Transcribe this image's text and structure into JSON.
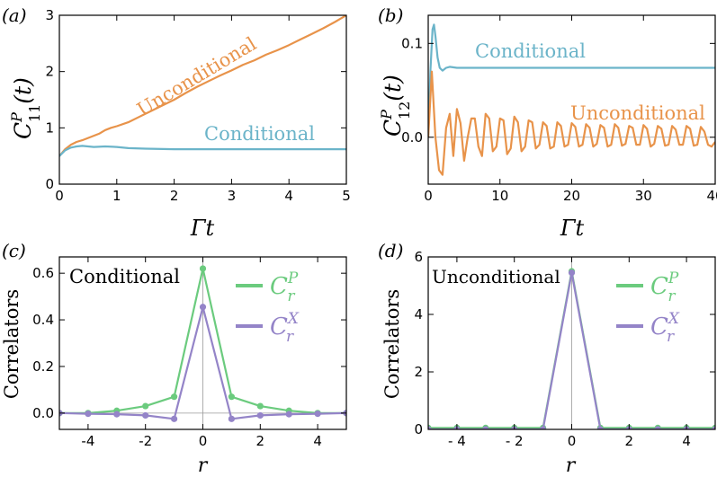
{
  "chart_data": [
    {
      "type": "line",
      "panel_label": "(a)",
      "ylabel_main": "C",
      "ylabel_sup": "P",
      "ylabel_sub": "11",
      "ylabel_tail": "(t)",
      "xlabel_main": "Γt",
      "xlim": [
        0,
        5
      ],
      "ylim": [
        0,
        3
      ],
      "xticks": [
        0,
        1,
        2,
        3,
        4,
        5
      ],
      "yticks": [
        0,
        1,
        2,
        3
      ],
      "series": [
        {
          "name": "Unconditional",
          "color": "#E8934A",
          "x": [
            0,
            0.1,
            0.2,
            0.3,
            0.4,
            0.5,
            0.6,
            0.7,
            0.8,
            0.9,
            1.0,
            1.2,
            1.4,
            1.6,
            1.8,
            2.0,
            2.2,
            2.4,
            2.6,
            2.8,
            3.0,
            3.2,
            3.4,
            3.6,
            3.8,
            4.0,
            4.2,
            4.4,
            4.6,
            4.8,
            5.0
          ],
          "y": [
            0.5,
            0.62,
            0.7,
            0.75,
            0.78,
            0.82,
            0.86,
            0.9,
            0.96,
            1.0,
            1.03,
            1.1,
            1.2,
            1.3,
            1.4,
            1.5,
            1.62,
            1.73,
            1.83,
            1.93,
            2.02,
            2.12,
            2.2,
            2.3,
            2.38,
            2.47,
            2.57,
            2.67,
            2.77,
            2.88,
            3.0
          ]
        },
        {
          "name": "Conditional",
          "color": "#6BB4C9",
          "x": [
            0,
            0.1,
            0.2,
            0.3,
            0.4,
            0.5,
            0.6,
            0.8,
            1.0,
            1.2,
            1.5,
            2.0,
            3.0,
            4.0,
            5.0
          ],
          "y": [
            0.5,
            0.6,
            0.65,
            0.67,
            0.68,
            0.67,
            0.66,
            0.67,
            0.66,
            0.64,
            0.63,
            0.62,
            0.62,
            0.62,
            0.62
          ]
        }
      ]
    },
    {
      "type": "line",
      "panel_label": "(b)",
      "ylabel_main": "C",
      "ylabel_sup": "P",
      "ylabel_sub": "12",
      "ylabel_tail": "(t)",
      "xlabel_main": "Γt",
      "xlim": [
        0,
        40
      ],
      "ylim": [
        -0.05,
        0.13
      ],
      "xticks": [
        0,
        10,
        20,
        30,
        40
      ],
      "yticks": [
        0.0,
        0.1
      ],
      "ytick_labels": [
        "0.0",
        "0.1"
      ],
      "zero_line": true,
      "series": [
        {
          "name": "Conditional",
          "color": "#6BB4C9",
          "x": [
            0,
            0.3,
            0.6,
            0.8,
            1.0,
            1.3,
            1.6,
            2.0,
            2.5,
            3.0,
            4.0,
            6.0,
            10,
            20,
            30,
            40
          ],
          "y": [
            0.0,
            0.07,
            0.115,
            0.12,
            0.108,
            0.085,
            0.074,
            0.071,
            0.074,
            0.075,
            0.074,
            0.074,
            0.074,
            0.074,
            0.074,
            0.074
          ]
        },
        {
          "name": "Unconditional",
          "color": "#E8934A",
          "x": [
            0,
            0.5,
            1.0,
            1.5,
            2.0,
            2.5,
            3.0,
            3.5,
            4.0,
            4.5,
            5.0,
            5.5,
            6.0,
            6.5,
            7.0,
            7.5,
            8.0,
            8.5,
            9.0,
            9.5,
            10.0,
            10.5,
            11.0,
            11.5,
            12.0,
            12.5,
            13.0,
            13.5,
            14.0,
            14.5,
            15.0,
            15.5,
            16.0,
            16.5,
            17.0,
            17.5,
            18.0,
            18.5,
            19.0,
            19.5,
            20.0,
            20.5,
            21.0,
            21.5,
            22.0,
            22.5,
            23.0,
            23.5,
            24.0,
            24.5,
            25.0,
            25.5,
            26.0,
            26.5,
            27.0,
            27.5,
            28.0,
            28.5,
            29.0,
            29.5,
            30.0,
            30.5,
            31.0,
            31.5,
            32.0,
            32.5,
            33.0,
            33.5,
            34.0,
            34.5,
            35.0,
            35.5,
            36.0,
            36.5,
            37.0,
            37.5,
            38.0,
            38.5,
            39.0,
            39.5,
            40.0
          ],
          "y": [
            0.0,
            0.07,
            0.0,
            -0.035,
            -0.04,
            0.01,
            0.025,
            -0.02,
            0.03,
            0.015,
            -0.025,
            0.0,
            0.02,
            0.02,
            -0.01,
            -0.02,
            0.025,
            0.02,
            -0.015,
            -0.01,
            0.02,
            0.018,
            -0.018,
            -0.012,
            0.022,
            0.016,
            -0.015,
            -0.01,
            0.018,
            0.016,
            -0.012,
            -0.008,
            0.016,
            0.012,
            -0.012,
            -0.01,
            0.016,
            0.012,
            -0.01,
            -0.008,
            0.015,
            0.011,
            -0.01,
            -0.008,
            0.014,
            0.01,
            -0.01,
            -0.007,
            0.013,
            0.01,
            -0.01,
            -0.008,
            0.014,
            0.01,
            -0.009,
            -0.007,
            0.012,
            0.01,
            -0.008,
            -0.008,
            0.013,
            0.009,
            -0.01,
            -0.007,
            0.012,
            0.009,
            -0.009,
            -0.008,
            0.012,
            0.008,
            -0.008,
            -0.008,
            0.012,
            0.009,
            -0.009,
            -0.008,
            0.011,
            0.006,
            -0.008,
            -0.01,
            -0.005
          ]
        }
      ]
    },
    {
      "type": "line",
      "panel_label": "(c)",
      "ylabel": "Correlators",
      "xlabel": "r",
      "inset_text": "Conditional",
      "xlim": [
        -5,
        5
      ],
      "ylim": [
        -0.07,
        0.67
      ],
      "xticks": [
        -4,
        -2,
        0,
        2,
        4
      ],
      "yticks": [
        0.0,
        0.2,
        0.4,
        0.6
      ],
      "ytick_labels": [
        "0.0",
        "0.2",
        "0.4",
        "0.6"
      ],
      "xtick_labels": [
        "-4",
        "-2",
        "0",
        "2",
        "4"
      ],
      "zero_line": true,
      "center_line": true,
      "series": [
        {
          "name_main": "C",
          "name_sup": "P",
          "name_sub": "r",
          "color": "#6BCB7E",
          "x": [
            -6,
            -5,
            -4,
            -3,
            -2,
            -1,
            0,
            1,
            2,
            3,
            4,
            5,
            6
          ],
          "y": [
            0.0,
            0.0,
            0.0,
            0.01,
            0.03,
            0.07,
            0.62,
            0.07,
            0.03,
            0.01,
            0.0,
            0.0,
            0.0
          ]
        },
        {
          "name_main": "C",
          "name_sup": "X",
          "name_sub": "r",
          "color": "#9484C8",
          "x": [
            -6,
            -5,
            -4,
            -3,
            -2,
            -1,
            0,
            1,
            2,
            3,
            4,
            5,
            6
          ],
          "y": [
            0.0,
            0.0,
            -0.003,
            -0.005,
            -0.01,
            -0.025,
            0.455,
            -0.025,
            -0.01,
            -0.005,
            -0.003,
            0.0,
            0.0
          ]
        }
      ]
    },
    {
      "type": "line",
      "panel_label": "(d)",
      "ylabel": "Correlators",
      "xlabel": "r",
      "inset_text": "Unconditional",
      "xlim": [
        -5,
        5
      ],
      "ylim": [
        0,
        6
      ],
      "xticks": [
        -4,
        -2,
        0,
        2,
        4
      ],
      "yticks": [
        0,
        2,
        4,
        6
      ],
      "ytick_labels": [
        "0",
        "2",
        "4",
        "6"
      ],
      "xtick_labels": [
        "- 4",
        "- 2",
        "0",
        "2",
        "4"
      ],
      "center_line": true,
      "series": [
        {
          "name_main": "C",
          "name_sup": "P",
          "name_sub": "r",
          "color": "#6BCB7E",
          "x": [
            -6,
            -5,
            -4,
            -3,
            -2,
            -1,
            0,
            1,
            2,
            3,
            4,
            5,
            6
          ],
          "y": [
            0.05,
            0.05,
            0.05,
            0.05,
            0.05,
            0.05,
            5.5,
            0.05,
            0.05,
            0.05,
            0.05,
            0.05,
            0.05
          ]
        },
        {
          "name_main": "C",
          "name_sup": "X",
          "name_sub": "r",
          "color": "#9484C8",
          "x": [
            -6,
            -5,
            -4,
            -3,
            -2,
            -1,
            0,
            1,
            2,
            3,
            4,
            5,
            6
          ],
          "y": [
            0.0,
            0.0,
            0.0,
            0.0,
            0.0,
            0.0,
            5.45,
            0.0,
            0.0,
            0.0,
            0.0,
            0.0,
            0.0
          ]
        }
      ]
    }
  ]
}
